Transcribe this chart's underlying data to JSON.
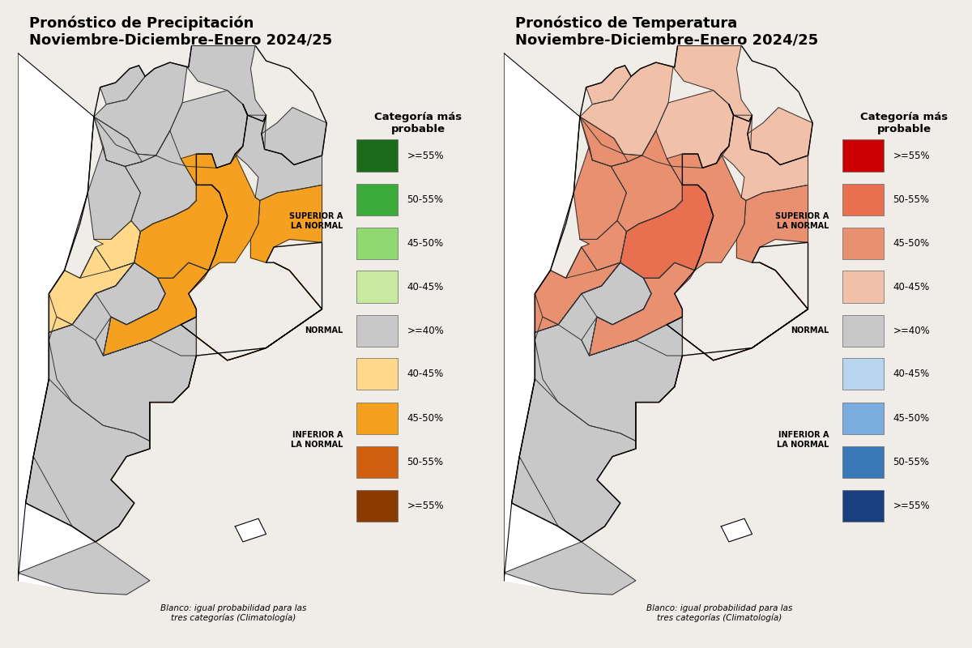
{
  "title_left_line1": "Pronóstico de Precipitación",
  "title_left_line2": "Noviembre-Diciembre-Enero 2024/25",
  "title_right_line1": "Pronóstico de Temperatura",
  "title_right_line2": "Noviembre-Diciembre-Enero 2024/25",
  "legend_title": "Categoría más\nprobable",
  "legend_labels": [
    ">=55%",
    "50-55%",
    "45-50%",
    "40-45%",
    ">=40%",
    "40-45%",
    "45-50%",
    "50-55%",
    ">=55%"
  ],
  "footnote": "Blanco: igual probabilidad para las\ntres categorías (Climatología)",
  "precip_colors": {
    "dark_green": "#1a6b1a",
    "medium_green": "#3aaa3a",
    "light_green": "#90d870",
    "very_light_green": "#c8eaa0",
    "gray": "#c8c8c8",
    "light_orange": "#ffd88a",
    "medium_orange": "#f5a020",
    "dark_orange": "#d06010",
    "brown": "#8b3a00"
  },
  "temp_colors": {
    "dark_red": "#cc0000",
    "medium_red": "#e87050",
    "light_red": "#e89070",
    "very_light_red": "#f0c0a8",
    "gray": "#c8c8c8",
    "light_blue": "#b8d4ee",
    "medium_blue": "#7aace0",
    "dark_blue": "#3a78b8",
    "very_dark_blue": "#1a3f80"
  },
  "background_color": "#f0ede8",
  "map_background": "#ffffff",
  "outline_color": "#000000",
  "province_color": "#333333"
}
